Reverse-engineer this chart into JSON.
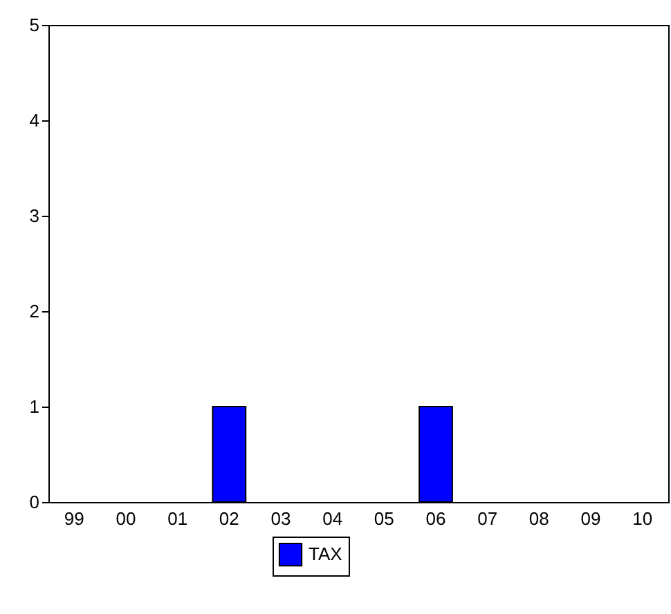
{
  "chart_data": {
    "type": "bar",
    "categories": [
      "99",
      "00",
      "01",
      "02",
      "03",
      "04",
      "05",
      "06",
      "07",
      "08",
      "09",
      "10"
    ],
    "series": [
      {
        "name": "TAX",
        "color": "#0000ff",
        "values": [
          0,
          0,
          0,
          1,
          0,
          0,
          0,
          1,
          0,
          0,
          0,
          0
        ]
      }
    ],
    "ylim": [
      0,
      5
    ],
    "yticks": [
      0,
      1,
      2,
      3,
      4,
      5
    ],
    "grid": false,
    "legend": "bottom"
  }
}
